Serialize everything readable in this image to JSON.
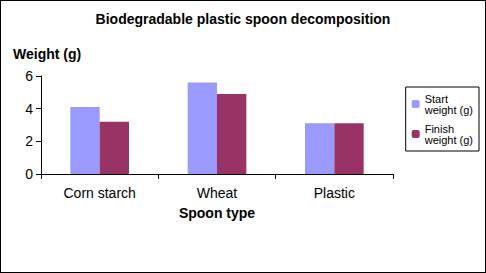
{
  "chart_data": {
    "type": "bar",
    "title": "Biodegradable plastic spoon decomposition",
    "x_label": "Spoon type",
    "y_label": "Weight (g)",
    "categories": [
      "Corn starch",
      "Wheat",
      "Plastic"
    ],
    "series": [
      {
        "name": "Start weight (g)",
        "color": "#9999ff",
        "values": [
          4.1,
          5.6,
          3.1
        ]
      },
      {
        "name": "Finish weight (g)",
        "color": "#993366",
        "values": [
          3.2,
          4.9,
          3.1
        ]
      }
    ],
    "ylim": [
      0,
      6
    ],
    "yticks": [
      0,
      2,
      4,
      6
    ],
    "grid": false,
    "legend": "right"
  }
}
